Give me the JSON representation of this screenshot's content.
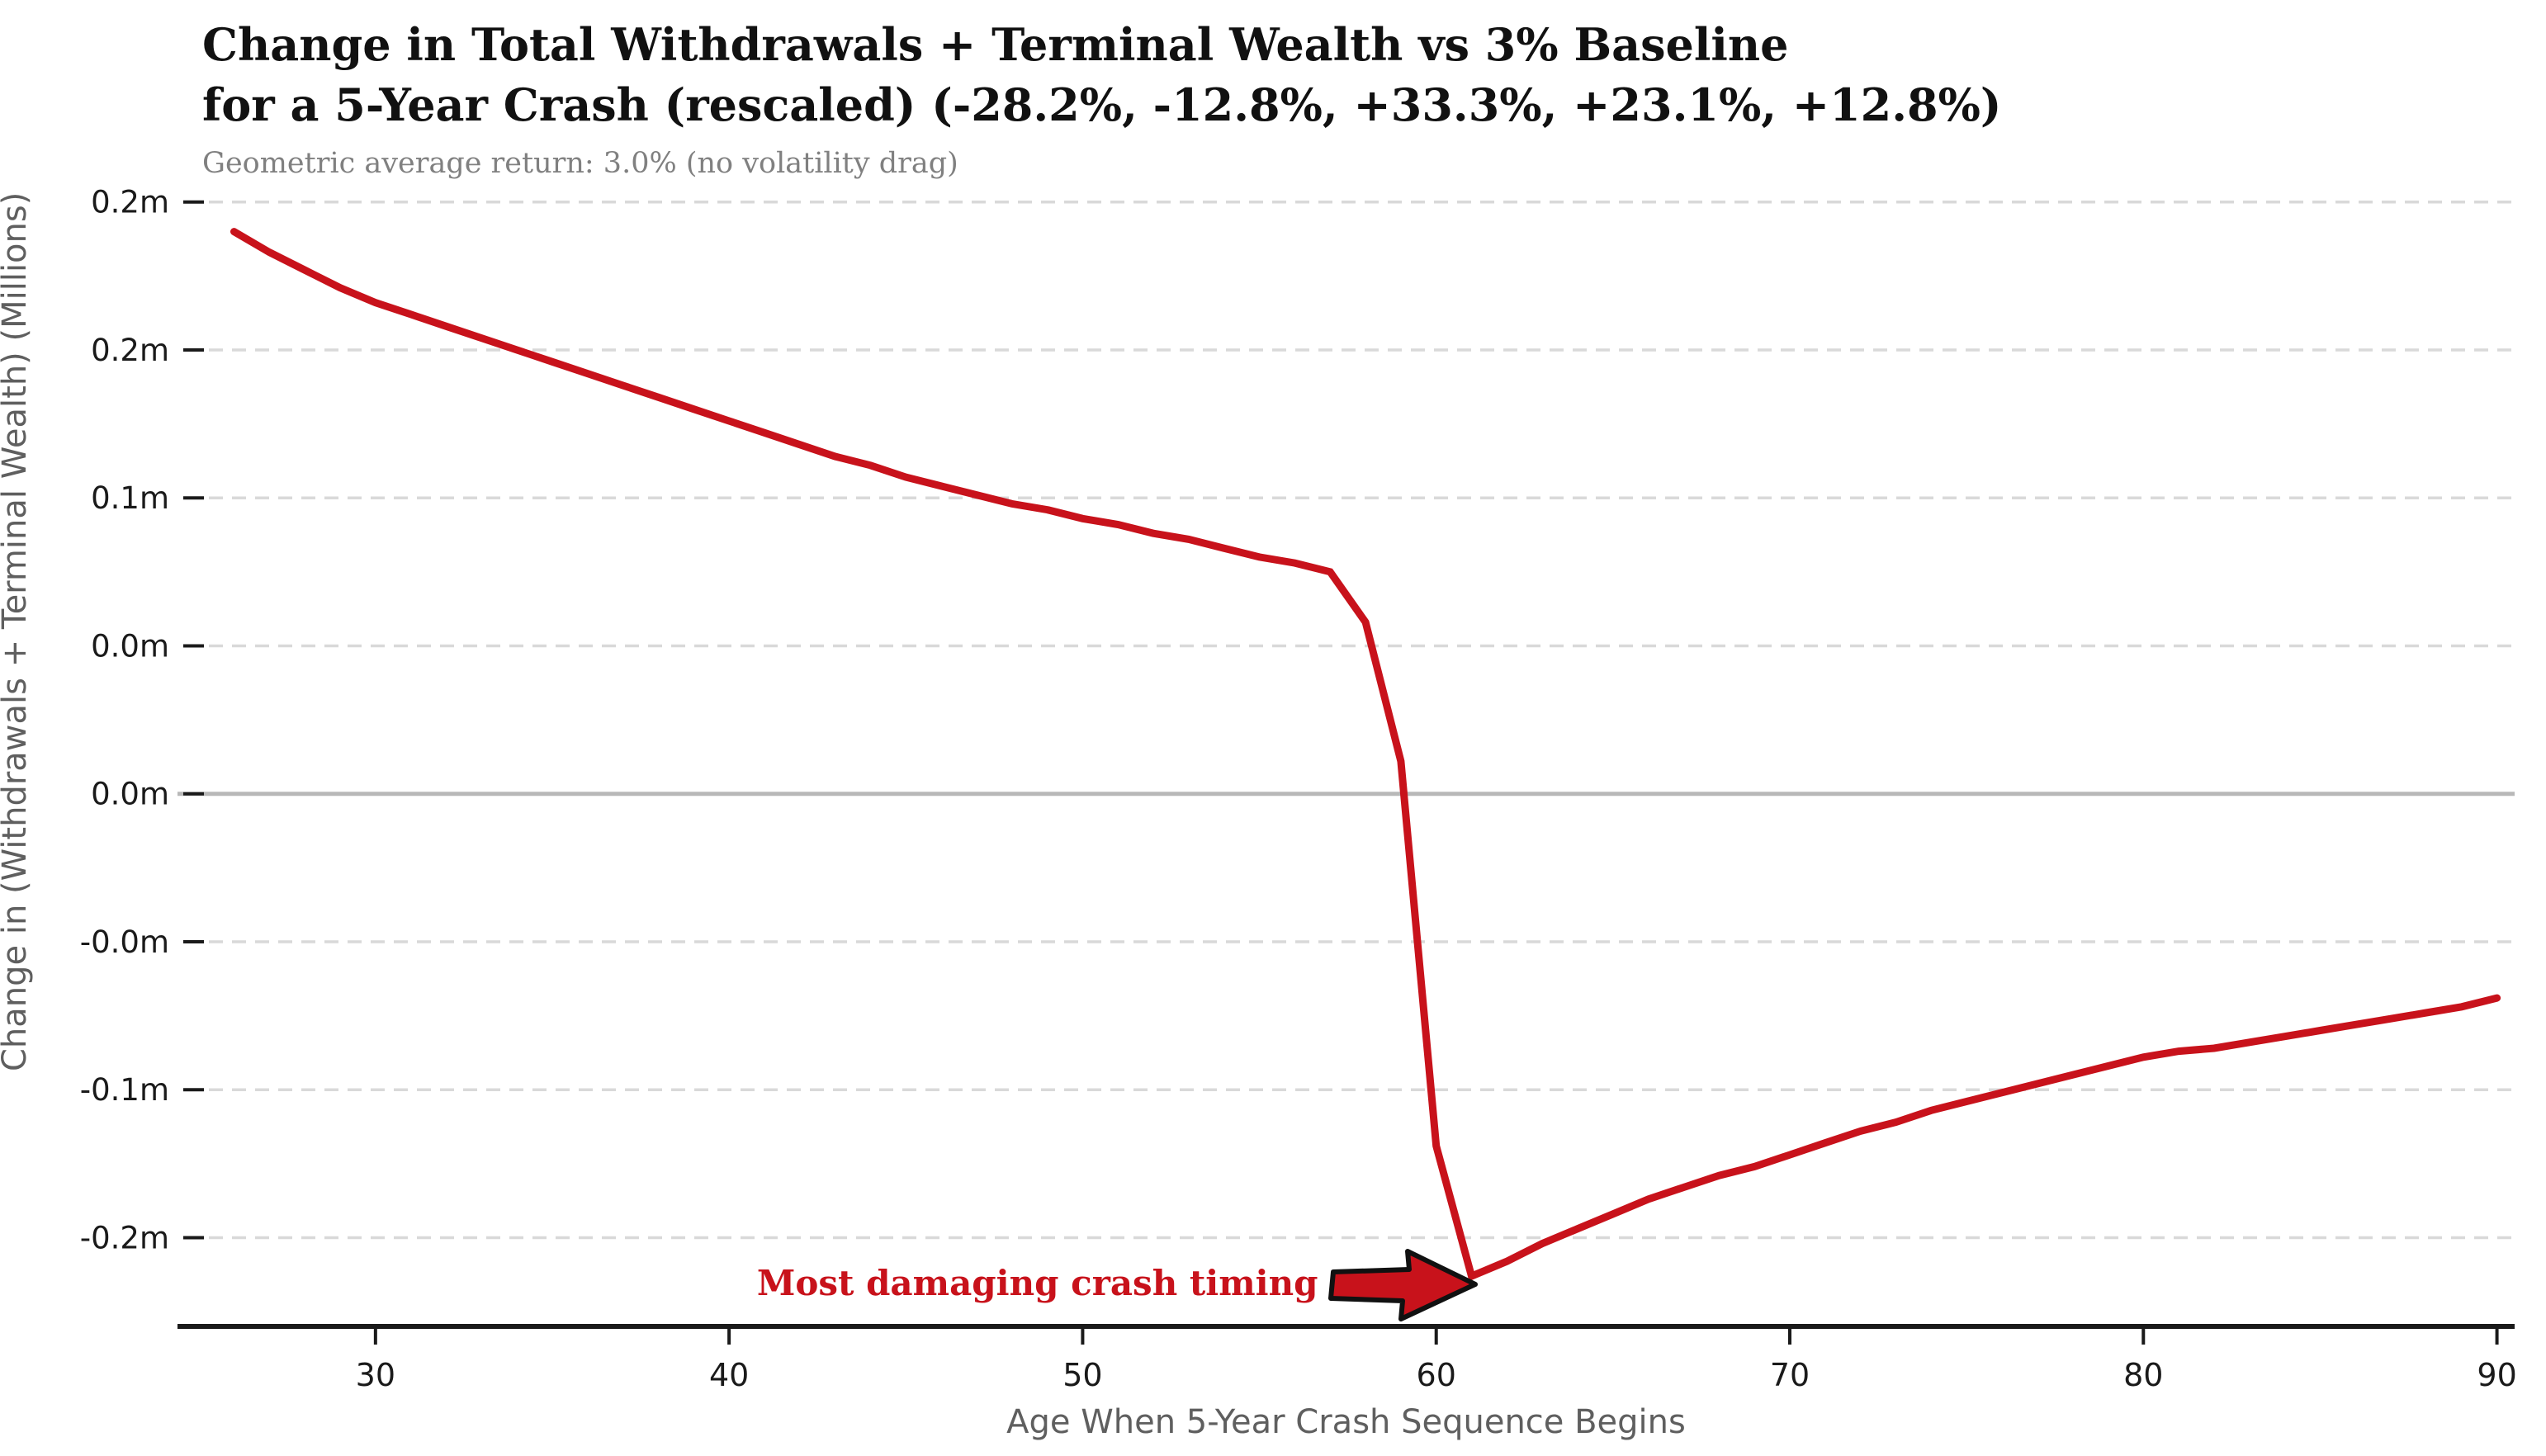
{
  "title": {
    "line1": "Change in Total Withdrawals + Terminal Wealth vs 3% Baseline",
    "line2": "for a 5-Year Crash (rescaled) (-28.2%, -12.8%, +33.3%, +23.1%, +12.8%)"
  },
  "subtitle": "Geometric average return: 3.0% (no volatility drag)",
  "colors": {
    "line": "#c8121b",
    "annotation_text": "#c8121b",
    "arrow_fill": "#c8121b",
    "arrow_edge": "#111111",
    "grid": "#d9d9d9",
    "zero_line": "#b8b8b8",
    "spine": "#1a1a1a",
    "tick_label": "#1a1a1a",
    "subtitle": "#808080",
    "axis_label": "#5f5f5f"
  },
  "annotation": {
    "text": "Most damaging crash timing",
    "arrow_tip_age": 61,
    "arrow_tip_value": -0.163
  },
  "y_axis": {
    "label": "Change in (Withdrawals + Terminal Wealth) (Millions)",
    "ticks": [
      {
        "value": 0.2,
        "label": "0.2m"
      },
      {
        "value": 0.15,
        "label": "0.2m"
      },
      {
        "value": 0.1,
        "label": "0.1m"
      },
      {
        "value": 0.05,
        "label": "0.0m"
      },
      {
        "value": 0.0,
        "label": "0.0m"
      },
      {
        "value": -0.05,
        "label": "-0.0m"
      },
      {
        "value": -0.1,
        "label": "-0.1m"
      },
      {
        "value": -0.15,
        "label": "-0.2m"
      }
    ]
  },
  "x_axis": {
    "label": "Age When 5-Year Crash Sequence Begins",
    "ticks": [
      30,
      40,
      50,
      60,
      70,
      80,
      90
    ]
  },
  "chart_data": {
    "type": "line",
    "series_name": "Change in (Withdrawals + Terminal Wealth), millions",
    "title": "Change in Total Withdrawals + Terminal Wealth vs 3% Baseline for a 5-Year Crash (rescaled) (-28.2%, -12.8%, +33.3%, +23.1%, +12.8%)",
    "xlabel": "Age When 5-Year Crash Sequence Begins",
    "ylabel": "Change in (Withdrawals + Terminal Wealth) (Millions)",
    "xlim": [
      24.4,
      90.5
    ],
    "ylim": [
      -0.18,
      0.2055
    ],
    "grid": "horizontal-dashed",
    "zero_line": true,
    "x": [
      26,
      27,
      28,
      29,
      30,
      31,
      32,
      33,
      34,
      35,
      36,
      37,
      38,
      39,
      40,
      41,
      42,
      43,
      44,
      45,
      46,
      47,
      48,
      49,
      50,
      51,
      52,
      53,
      54,
      55,
      56,
      57,
      58,
      59,
      60,
      61,
      62,
      63,
      64,
      65,
      66,
      67,
      68,
      69,
      70,
      71,
      72,
      73,
      74,
      75,
      76,
      77,
      78,
      79,
      80,
      81,
      82,
      83,
      84,
      85,
      86,
      87,
      88,
      89,
      90
    ],
    "values": [
      0.19,
      0.183,
      0.177,
      0.171,
      0.166,
      0.162,
      0.158,
      0.154,
      0.15,
      0.146,
      0.142,
      0.138,
      0.134,
      0.13,
      0.126,
      0.122,
      0.118,
      0.114,
      0.111,
      0.107,
      0.104,
      0.101,
      0.098,
      0.096,
      0.093,
      0.091,
      0.088,
      0.086,
      0.083,
      0.08,
      0.078,
      0.075,
      0.058,
      0.011,
      -0.119,
      -0.163,
      -0.158,
      -0.152,
      -0.147,
      -0.142,
      -0.137,
      -0.133,
      -0.129,
      -0.126,
      -0.122,
      -0.118,
      -0.114,
      -0.111,
      -0.107,
      -0.104,
      -0.101,
      -0.098,
      -0.095,
      -0.092,
      -0.089,
      -0.087,
      -0.086,
      -0.084,
      -0.082,
      -0.08,
      -0.078,
      -0.076,
      -0.074,
      -0.072,
      -0.069
    ],
    "annotations": [
      {
        "text": "Most damaging crash timing",
        "x": 61,
        "y": -0.163
      }
    ]
  }
}
